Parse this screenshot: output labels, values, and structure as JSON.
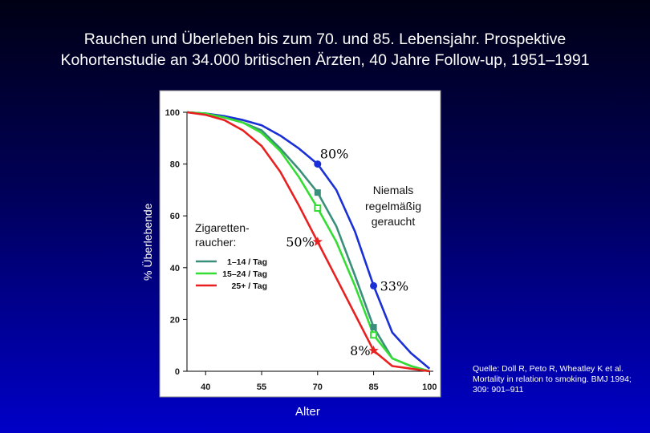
{
  "title_line1": "Rauchen und Überleben bis zum 70. und 85. Lebensjahr. Prospektive",
  "title_line2": "Kohortenstudie an 34.000 britischen Ärzten, 40 Jahre Follow-up, 1951–1991",
  "source": "Quelle: Doll R, Peto R, Wheatley K et al. Mortality in relation to smoking. BMJ 1994; 309: 901–911",
  "chart_data": {
    "type": "line",
    "xlabel": "Alter",
    "ylabel": "% Überlebende",
    "xlim": [
      35,
      101
    ],
    "ylim": [
      0,
      100
    ],
    "x_ticks": [
      40,
      55,
      70,
      85,
      100
    ],
    "y_ticks": [
      0,
      20,
      40,
      60,
      80,
      100
    ],
    "grid": false,
    "legend_title": "Zigaretten-raucher:",
    "legend_title_lines": [
      "Zigaretten-",
      "raucher:"
    ],
    "nonsmoker_label_lines": [
      "Niemals",
      "regelmäßig",
      "geraucht"
    ],
    "series": [
      {
        "name": "Niemals regelmäßig geraucht",
        "color": "#1a2fd6",
        "x": [
          35,
          40,
          45,
          50,
          55,
          60,
          65,
          70,
          75,
          80,
          85,
          90,
          95,
          100
        ],
        "y": [
          100,
          99.5,
          98.5,
          97,
          95,
          91,
          86,
          80,
          70,
          54,
          33,
          15,
          7,
          1
        ]
      },
      {
        "name": "1–14 / Tag",
        "color": "#3a8f7a",
        "x": [
          35,
          40,
          45,
          50,
          55,
          60,
          65,
          70,
          75,
          80,
          85,
          90,
          95,
          100
        ],
        "y": [
          100,
          99.5,
          98,
          96,
          93,
          86,
          78,
          69,
          56,
          37,
          17,
          5,
          2,
          0
        ]
      },
      {
        "name": "15–24 / Tag",
        "color": "#33dd33",
        "x": [
          35,
          40,
          45,
          50,
          55,
          60,
          65,
          70,
          75,
          80,
          85,
          90,
          95,
          100
        ],
        "y": [
          100,
          99.5,
          98,
          96,
          92,
          85,
          75,
          63,
          50,
          33,
          14,
          5,
          2,
          0
        ]
      },
      {
        "name": "25+ / Tag",
        "color": "#e82020",
        "x": [
          35,
          40,
          45,
          50,
          55,
          60,
          65,
          70,
          75,
          80,
          85,
          90,
          95,
          100
        ],
        "y": [
          100,
          99,
          97,
          93,
          87,
          77,
          64,
          50,
          36,
          22,
          8,
          2,
          1,
          0
        ]
      }
    ],
    "markers": [
      {
        "type": "circle",
        "x": 70,
        "y": 80,
        "color": "#1a2fd6",
        "label": "80%"
      },
      {
        "type": "circle",
        "x": 85,
        "y": 33,
        "color": "#1a2fd6",
        "label": "33%"
      },
      {
        "type": "square-filled",
        "x": 70,
        "y": 69,
        "color": "#3a8f7a"
      },
      {
        "type": "square-open",
        "x": 70,
        "y": 63,
        "color": "#33dd33"
      },
      {
        "type": "square-filled",
        "x": 85,
        "y": 17,
        "color": "#3a8f7a"
      },
      {
        "type": "square-open",
        "x": 85,
        "y": 14,
        "color": "#33dd33"
      },
      {
        "type": "star",
        "x": 70,
        "y": 50,
        "color": "#e82020",
        "label": "50%"
      },
      {
        "type": "star",
        "x": 85,
        "y": 8,
        "color": "#e82020",
        "label": "8%"
      }
    ]
  }
}
